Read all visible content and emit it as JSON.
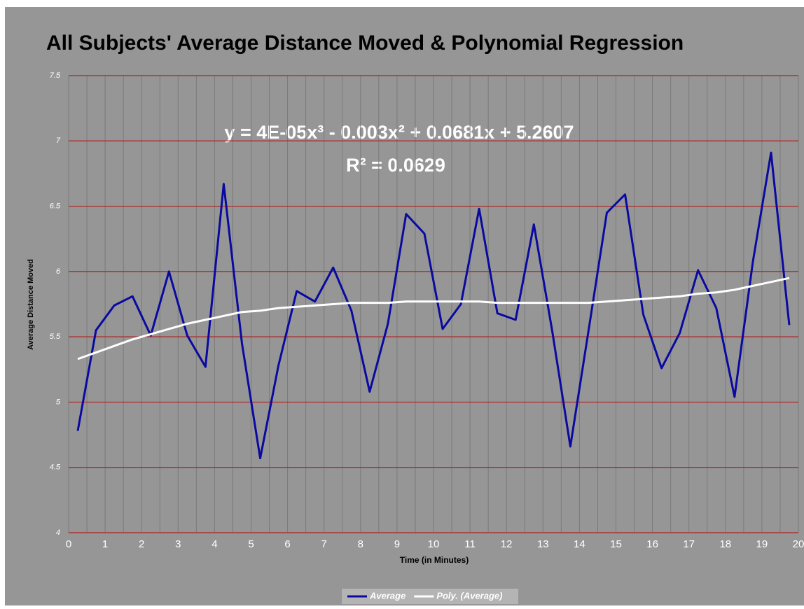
{
  "chart_data": {
    "type": "line",
    "title": "All Subjects' Average Distance Moved & Polynomial Regression",
    "annotations": [
      "y = 4E-05x³ - 0.003x² + 0.0681x + 5.2607",
      "R² = 0.0629"
    ],
    "x_label": "Time (in Minutes)",
    "y_label": "Average Distance Moved",
    "x": [
      0.25,
      0.75,
      1.25,
      1.75,
      2.25,
      2.75,
      3.25,
      3.75,
      4.25,
      4.75,
      5.25,
      5.75,
      6.25,
      6.75,
      7.25,
      7.75,
      8.25,
      8.75,
      9.25,
      9.75,
      10.25,
      10.75,
      11.25,
      11.75,
      12.25,
      12.75,
      13.25,
      13.75,
      14.25,
      14.75,
      15.25,
      15.75,
      16.25,
      16.75,
      17.25,
      17.75,
      18.25,
      18.75,
      19.25,
      19.75
    ],
    "series": [
      {
        "name": "Average",
        "color": "#0a0aa0",
        "values": [
          4.78,
          5.55,
          5.74,
          5.81,
          5.51,
          6.0,
          5.51,
          5.27,
          6.67,
          5.45,
          4.57,
          5.28,
          5.85,
          5.77,
          6.03,
          5.7,
          5.08,
          5.6,
          6.44,
          6.29,
          5.56,
          5.75,
          6.48,
          5.68,
          5.63,
          6.36,
          5.55,
          4.66,
          5.55,
          6.45,
          6.59,
          5.67,
          5.26,
          5.53,
          6.01,
          5.72,
          5.04,
          6.07,
          6.91,
          5.59
        ]
      },
      {
        "name": "Poly. (Average)",
        "color": "#ffffff",
        "values": [
          5.33,
          5.38,
          5.43,
          5.48,
          5.52,
          5.56,
          5.6,
          5.63,
          5.66,
          5.69,
          5.7,
          5.72,
          5.73,
          5.74,
          5.75,
          5.76,
          5.76,
          5.76,
          5.77,
          5.77,
          5.77,
          5.77,
          5.77,
          5.76,
          5.76,
          5.76,
          5.76,
          5.76,
          5.76,
          5.77,
          5.78,
          5.79,
          5.8,
          5.81,
          5.83,
          5.84,
          5.86,
          5.89,
          5.92,
          5.95
        ]
      }
    ],
    "xlim": [
      0,
      20
    ],
    "xticks": [
      0,
      1,
      2,
      3,
      4,
      5,
      6,
      7,
      8,
      9,
      10,
      11,
      12,
      13,
      14,
      15,
      16,
      17,
      18,
      19,
      20
    ],
    "ylim": [
      4,
      7.5
    ],
    "yticks": [
      4,
      4.5,
      5,
      5.5,
      6,
      6.5,
      7,
      7.5
    ],
    "grid": true,
    "grid_color": "#b02020",
    "legend": "bottom"
  }
}
